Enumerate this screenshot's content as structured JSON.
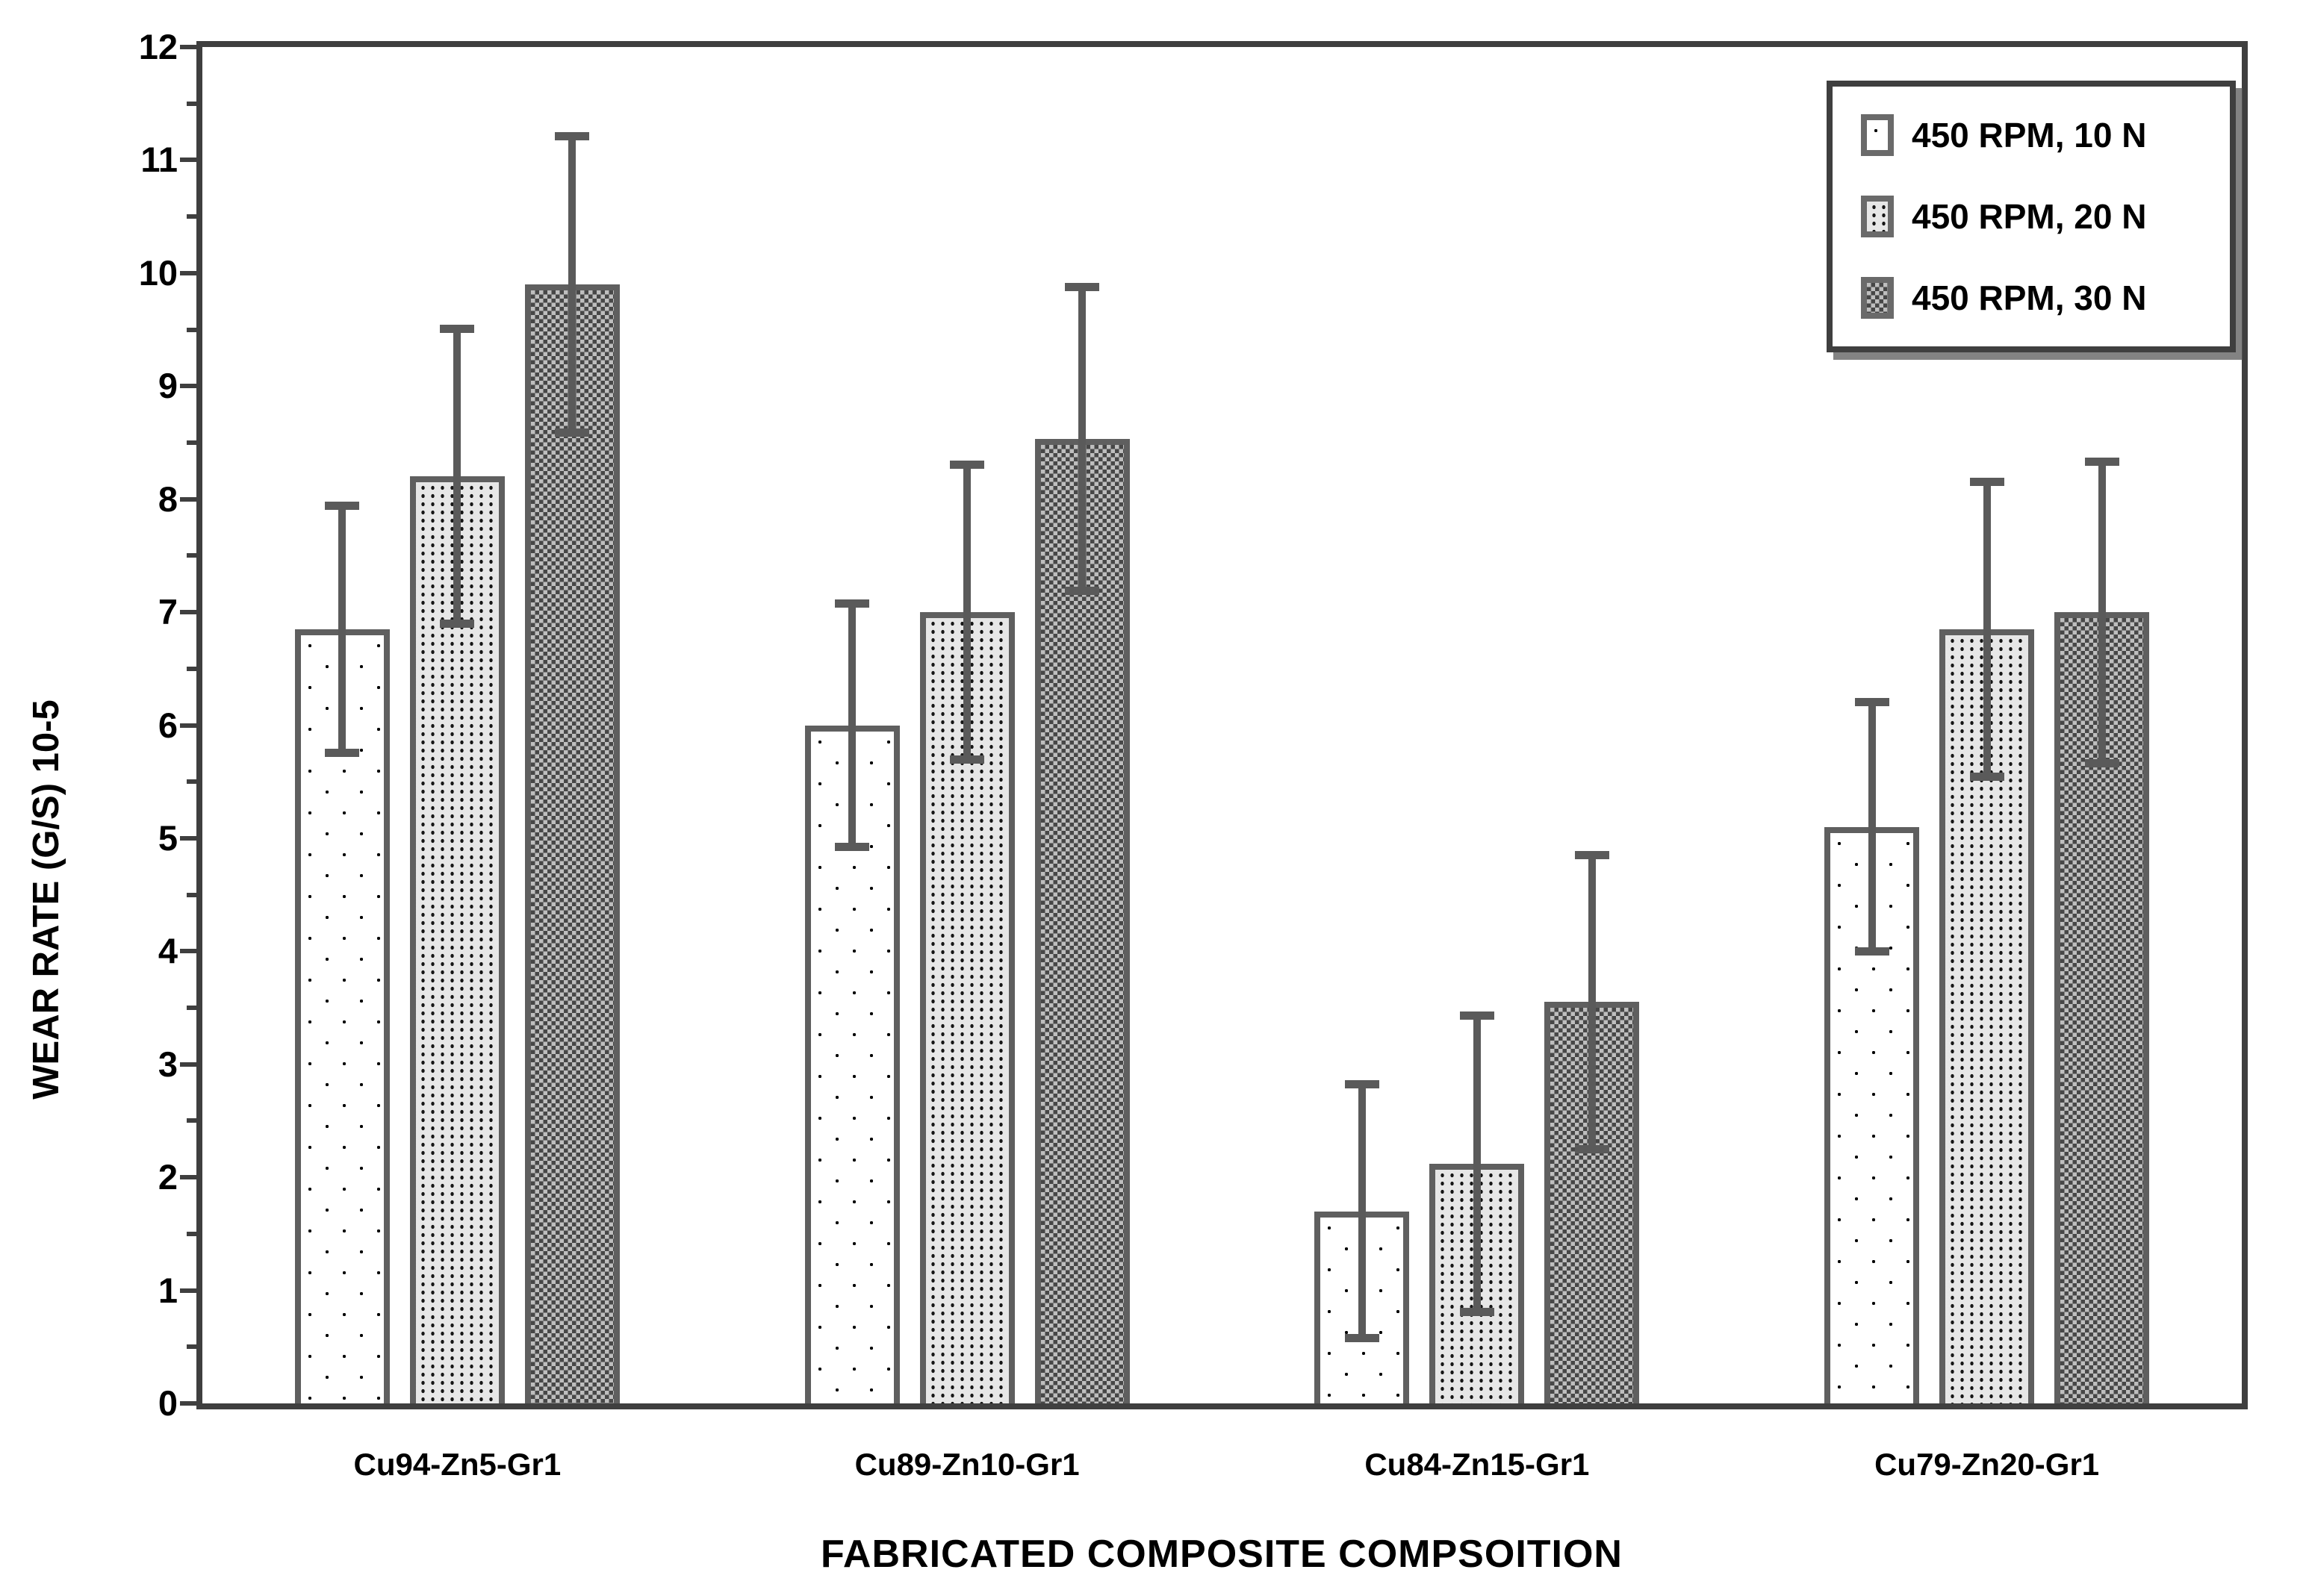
{
  "colors": {
    "background": "#ffffff",
    "bar_border": "#5f5f5f",
    "error_bar": "#5a5a5a",
    "axis": "#3f3f3f",
    "text": "#000000",
    "legend_border": "#3f3f3f",
    "legend_swatch_border": "#6a6a6a"
  },
  "chart_data": {
    "type": "bar",
    "title": "",
    "xlabel": "FABRICATED COMPOSITE COMPSOITION",
    "ylabel": "WEAR RATE (G/S) 10-5",
    "ylim": [
      0,
      12
    ],
    "yticks": [
      0,
      1,
      2,
      3,
      4,
      5,
      6,
      7,
      8,
      9,
      10,
      11,
      12
    ],
    "minor_tick_interval": 0.5,
    "grid": false,
    "legend_position": "top-right",
    "error_bars": "symmetric",
    "categories": [
      "Cu94-Zn5-Gr1",
      "Cu89-Zn10-Gr1",
      "Cu84-Zn15-Gr1",
      "Cu79-Zn20-Gr1"
    ],
    "series": [
      {
        "name": "450 RPM, 10 N",
        "pattern": "sparse-dots",
        "values": [
          6.85,
          6.0,
          1.7,
          5.1
        ],
        "errors": [
          1.13,
          1.11,
          1.16,
          1.14
        ]
      },
      {
        "name": "450 RPM, 20 N",
        "pattern": "dense-dots",
        "values": [
          8.2,
          7.0,
          2.12,
          6.85
        ],
        "errors": [
          1.34,
          1.34,
          1.35,
          1.34
        ]
      },
      {
        "name": "450 RPM, 30 N",
        "pattern": "checkerboard",
        "values": [
          9.9,
          8.53,
          3.55,
          7.0
        ],
        "errors": [
          1.35,
          1.38,
          1.34,
          1.37
        ]
      }
    ]
  }
}
